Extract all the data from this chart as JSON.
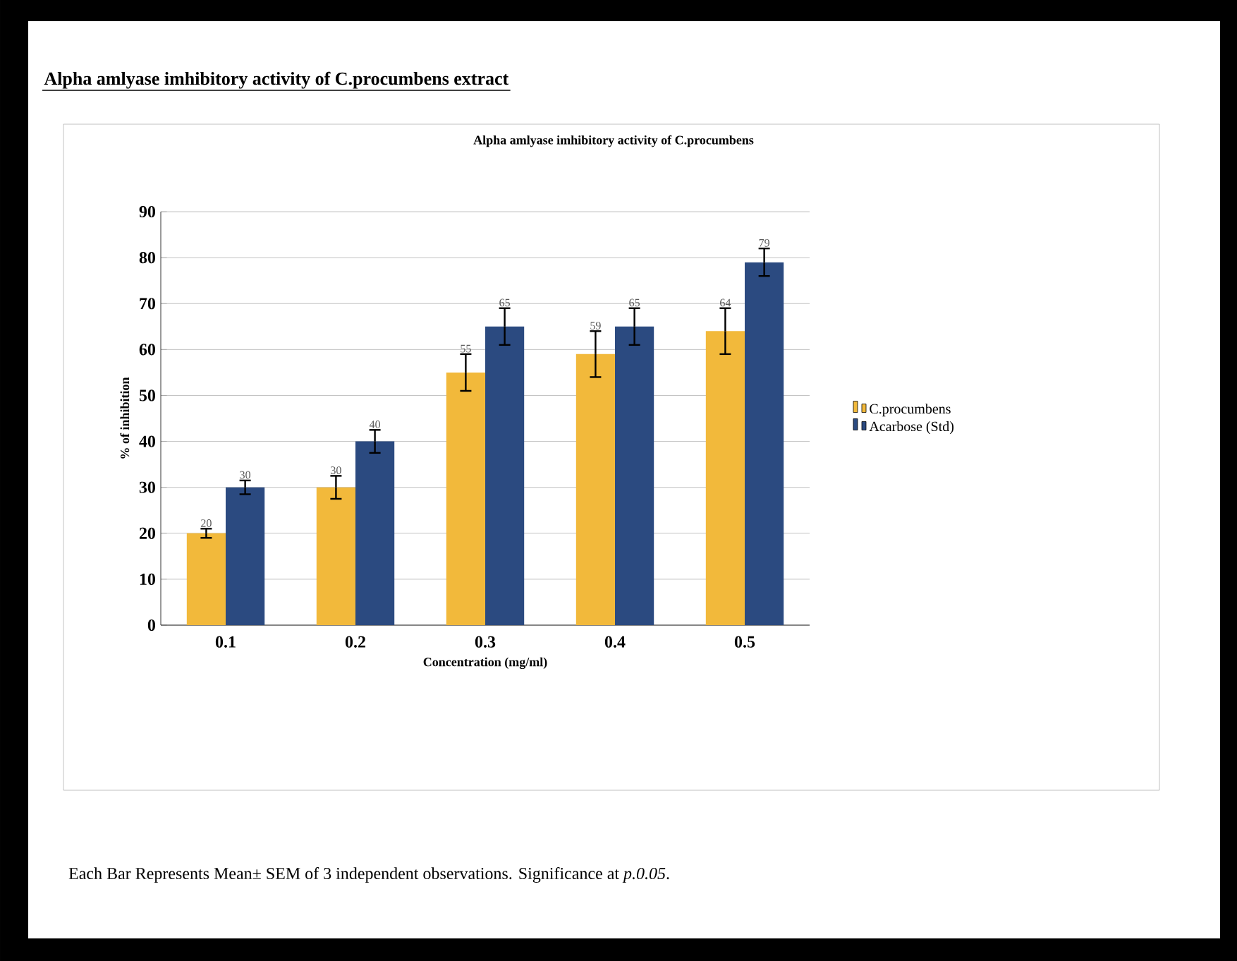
{
  "chart_data": {
    "type": "bar",
    "title": "Alpha amlyase imhibitory activity of C.procumbens extract",
    "subtitle": "Alpha amlyase imhibitory activity of C.procumbens",
    "xlabel": "Concentration (mg/ml)",
    "ylabel": "% of inhibition",
    "categories": [
      "0.1",
      "0.2",
      "0.3",
      "0.4",
      "0.5"
    ],
    "series": [
      {
        "name": "C.procumbens",
        "color": "#f2b93b",
        "values": [
          20,
          30,
          55,
          59,
          64
        ],
        "errors": [
          1,
          2.5,
          4,
          5,
          5
        ]
      },
      {
        "name": "Acarbose (Std)",
        "color": "#2b4a80",
        "values": [
          30,
          40,
          65,
          65,
          79
        ],
        "errors": [
          1.5,
          2.5,
          4,
          4,
          3
        ]
      }
    ],
    "ylim": [
      0,
      90
    ],
    "yticks": [
      0,
      10,
      20,
      30,
      40,
      50,
      60,
      70,
      80,
      90
    ],
    "grid": "y",
    "legend": "right",
    "data_labels": true,
    "annotations": [
      "Each Bar Represents Mean± SEM of 3 independent observations. Significance at *p.0.05*."
    ]
  }
}
